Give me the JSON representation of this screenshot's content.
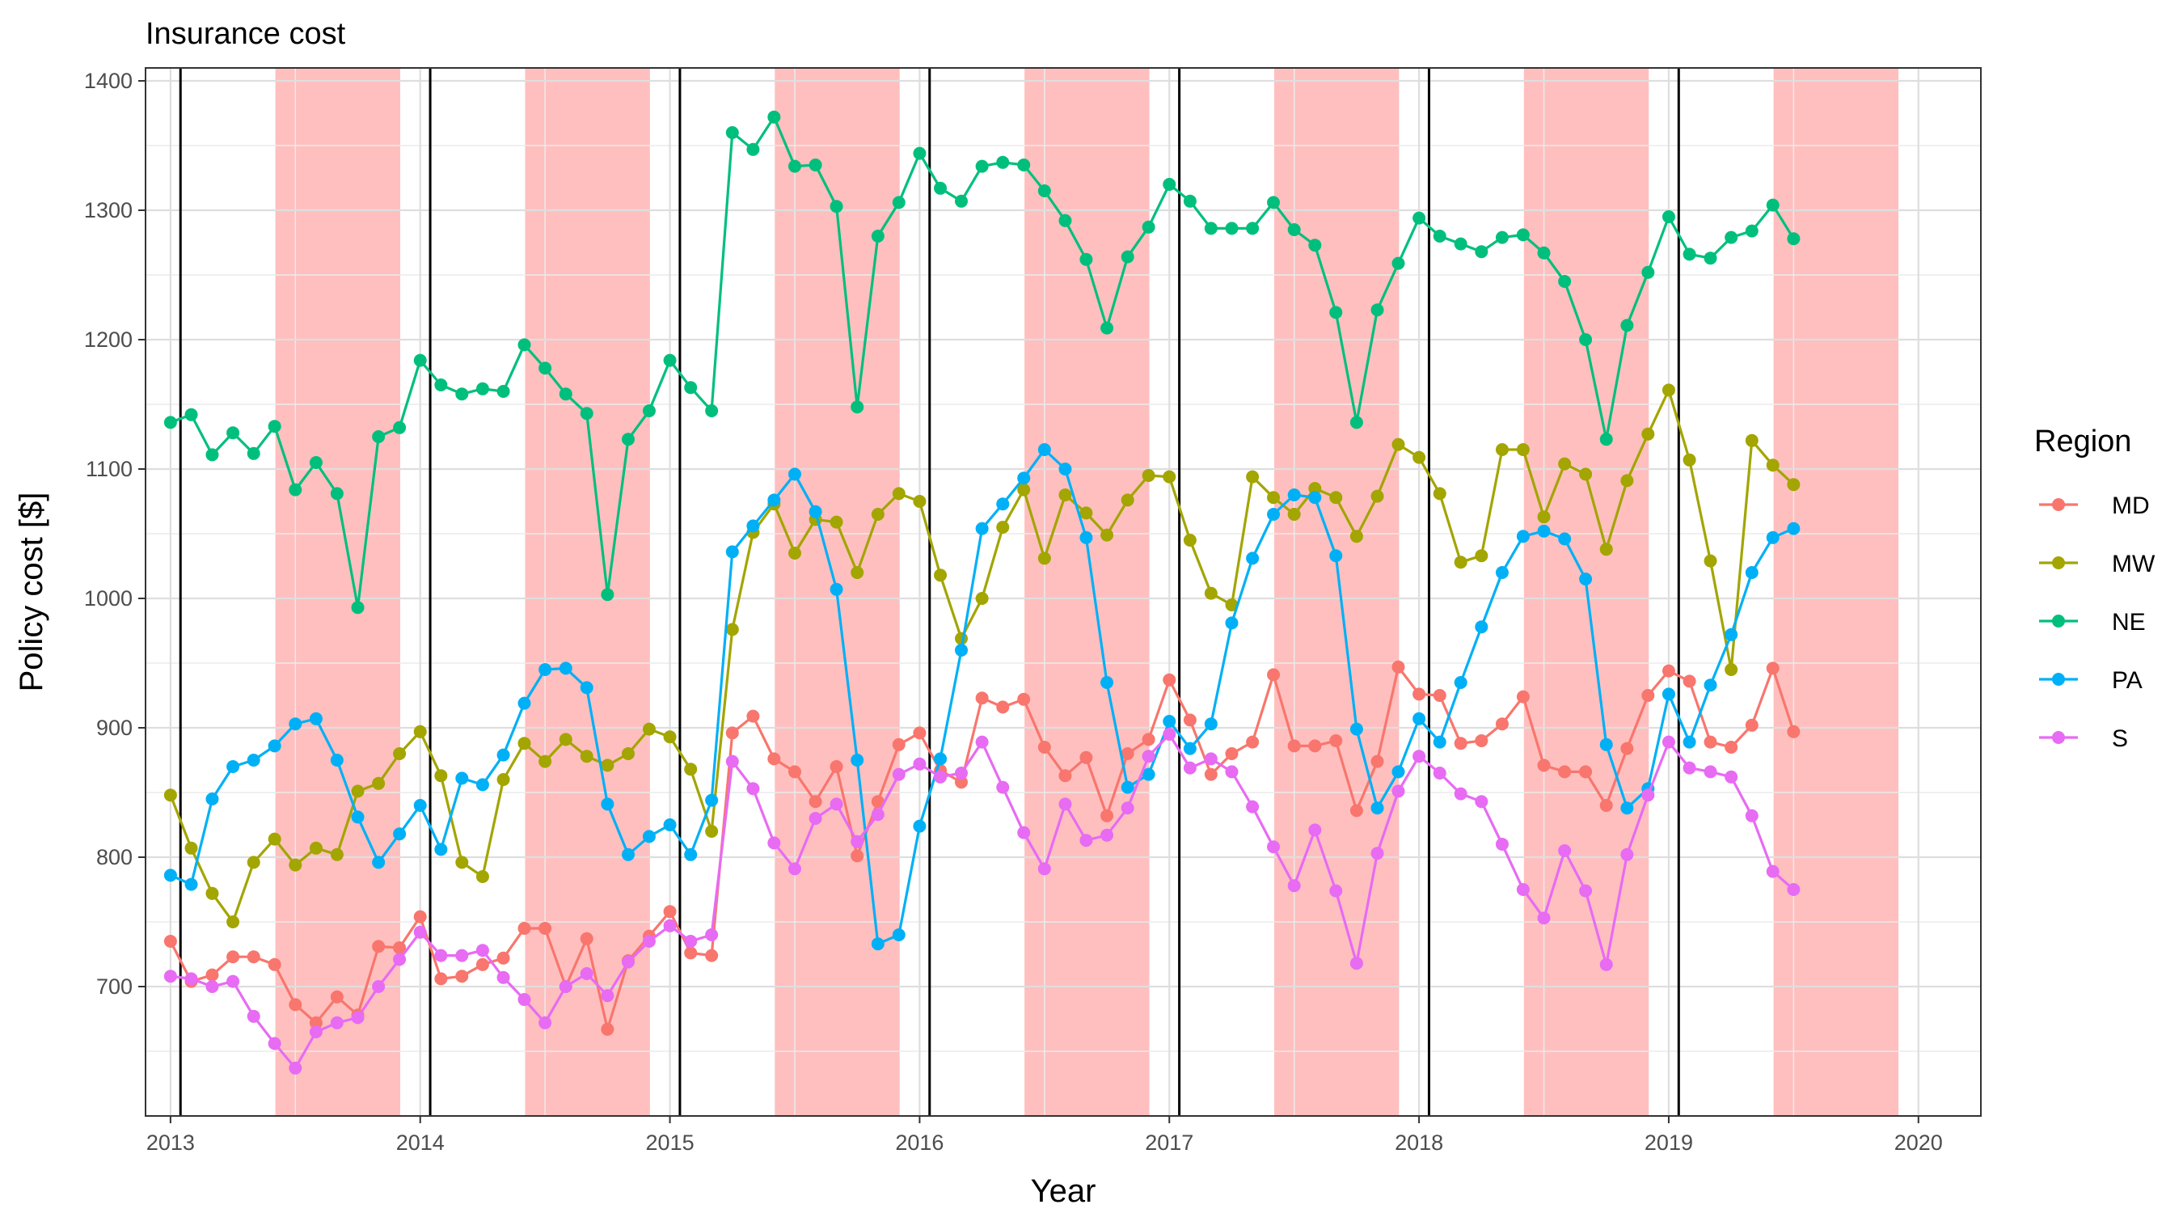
{
  "chart_data": {
    "type": "line",
    "title": "Insurance cost",
    "xlabel": "Year",
    "ylabel": "Policy cost [$]",
    "xlim": [
      2012.9,
      2020.25
    ],
    "ylim": [
      600,
      1410
    ],
    "x_ticks": [
      2013,
      2014,
      2015,
      2016,
      2017,
      2018,
      2019,
      2020
    ],
    "x_tick_labels": [
      "2013",
      "2014",
      "2015",
      "2016",
      "2017",
      "2018",
      "2019",
      "2020"
    ],
    "y_ticks": [
      700,
      800,
      900,
      1000,
      1100,
      1200,
      1300,
      1400
    ],
    "y_tick_labels": [
      "700",
      "800",
      "900",
      "1000",
      "1100",
      "1200",
      "1300",
      "1400"
    ],
    "grid": true,
    "legend": {
      "title": "Region",
      "position": "right"
    },
    "year_lines": [
      2013.04,
      2014.04,
      2015.04,
      2016.04,
      2017.04,
      2018.04,
      2019.04
    ],
    "shaded_ranges": [
      [
        2013.42,
        2013.92
      ],
      [
        2014.42,
        2014.92
      ],
      [
        2015.42,
        2015.92
      ],
      [
        2016.42,
        2016.92
      ],
      [
        2017.42,
        2017.92
      ],
      [
        2018.42,
        2018.92
      ],
      [
        2019.42,
        2019.92
      ]
    ],
    "shade_color": "#ffbfbf",
    "x": [
      2013.0,
      2013.083,
      2013.167,
      2013.25,
      2013.333,
      2013.417,
      2013.5,
      2013.583,
      2013.667,
      2013.75,
      2013.833,
      2013.917,
      2014.0,
      2014.083,
      2014.167,
      2014.25,
      2014.333,
      2014.417,
      2014.5,
      2014.583,
      2014.667,
      2014.75,
      2014.833,
      2014.917,
      2015.0,
      2015.083,
      2015.167,
      2015.25,
      2015.333,
      2015.417,
      2015.5,
      2015.583,
      2015.667,
      2015.75,
      2015.833,
      2015.917,
      2016.0,
      2016.083,
      2016.167,
      2016.25,
      2016.333,
      2016.417,
      2016.5,
      2016.583,
      2016.667,
      2016.75,
      2016.833,
      2016.917,
      2017.0,
      2017.083,
      2017.167,
      2017.25,
      2017.333,
      2017.417,
      2017.5,
      2017.583,
      2017.667,
      2017.75,
      2017.833,
      2017.917,
      2018.0,
      2018.083,
      2018.167,
      2018.25,
      2018.333,
      2018.417,
      2018.5,
      2018.583,
      2018.667,
      2018.75,
      2018.833,
      2018.917,
      2019.0,
      2019.083,
      2019.167,
      2019.25,
      2019.333,
      2019.417,
      2019.5
    ],
    "series": [
      {
        "name": "MD",
        "color": "#f8766d",
        "values": [
          735,
          704,
          709,
          723,
          723,
          717,
          686,
          672,
          692,
          678,
          731,
          730,
          754,
          706,
          708,
          717,
          722,
          745,
          745,
          700,
          737,
          667,
          720,
          739,
          758,
          726,
          724,
          896,
          909,
          876,
          866,
          843,
          870,
          801,
          843,
          887,
          896,
          867,
          858,
          923,
          916,
          922,
          885,
          863,
          877,
          832,
          880,
          891,
          937,
          906,
          864,
          880,
          889,
          941,
          886,
          886,
          890,
          836,
          874,
          947,
          926,
          925,
          888,
          890,
          903,
          924,
          871,
          866,
          866,
          840,
          884,
          925,
          944,
          936,
          889,
          885,
          902,
          946,
          897
        ]
      },
      {
        "name": "MW",
        "color": "#a3a500",
        "values": [
          848,
          807,
          772,
          750,
          796,
          814,
          794,
          807,
          802,
          851,
          857,
          880,
          897,
          863,
          796,
          785,
          860,
          888,
          874,
          891,
          878,
          871,
          880,
          899,
          893,
          868,
          820,
          976,
          1051,
          1073,
          1035,
          1061,
          1059,
          1020,
          1065,
          1081,
          1075,
          1018,
          969,
          1000,
          1055,
          1084,
          1031,
          1080,
          1066,
          1049,
          1076,
          1095,
          1094,
          1045,
          1004,
          995,
          1094,
          1078,
          1065,
          1085,
          1078,
          1048,
          1079,
          1119,
          1109,
          1081,
          1028,
          1033,
          1115,
          1115,
          1063,
          1104,
          1096,
          1038,
          1091,
          1127,
          1161,
          1107,
          1029,
          945,
          1122,
          1103,
          1088
        ]
      },
      {
        "name": "NE",
        "color": "#00bf7d",
        "values": [
          1136,
          1142,
          1111,
          1128,
          1112,
          1133,
          1084,
          1105,
          1081,
          993,
          1125,
          1132,
          1184,
          1165,
          1158,
          1162,
          1160,
          1196,
          1178,
          1158,
          1143,
          1003,
          1123,
          1145,
          1184,
          1163,
          1145,
          1360,
          1347,
          1372,
          1334,
          1335,
          1303,
          1148,
          1280,
          1306,
          1344,
          1317,
          1307,
          1334,
          1337,
          1335,
          1315,
          1292,
          1262,
          1209,
          1264,
          1287,
          1320,
          1307,
          1286,
          1286,
          1286,
          1306,
          1285,
          1273,
          1221,
          1136,
          1223,
          1259,
          1294,
          1280,
          1274,
          1268,
          1279,
          1281,
          1267,
          1245,
          1200,
          1123,
          1211,
          1252,
          1295,
          1266,
          1263,
          1279,
          1284,
          1304,
          1278
        ]
      },
      {
        "name": "PA",
        "color": "#00b0f6",
        "values": [
          786,
          779,
          845,
          870,
          875,
          886,
          903,
          907,
          875,
          831,
          796,
          818,
          840,
          806,
          861,
          856,
          879,
          919,
          945,
          946,
          931,
          841,
          802,
          816,
          825,
          802,
          844,
          1036,
          1056,
          1076,
          1096,
          1067,
          1007,
          875,
          733,
          740,
          824,
          876,
          960,
          1054,
          1073,
          1093,
          1115,
          1100,
          1047,
          935,
          854,
          864,
          905,
          884,
          903,
          981,
          1031,
          1065,
          1080,
          1078,
          1033,
          899,
          838,
          866,
          907,
          889,
          935,
          978,
          1020,
          1048,
          1052,
          1046,
          1015,
          887,
          838,
          853,
          926,
          889,
          933,
          972,
          1020,
          1047,
          1054
        ]
      },
      {
        "name": "S",
        "color": "#e76bf3",
        "values": [
          708,
          706,
          700,
          704,
          677,
          656,
          637,
          665,
          672,
          676,
          700,
          721,
          742,
          724,
          724,
          728,
          707,
          690,
          672,
          700,
          710,
          693,
          719,
          735,
          747,
          735,
          740,
          874,
          853,
          811,
          791,
          830,
          841,
          812,
          833,
          864,
          872,
          862,
          865,
          889,
          854,
          819,
          791,
          841,
          813,
          817,
          838,
          878,
          895,
          869,
          876,
          866,
          839,
          808,
          778,
          821,
          774,
          718,
          803,
          851,
          878,
          865,
          849,
          843,
          810,
          775,
          753,
          805,
          774,
          717,
          802,
          848,
          889,
          869,
          866,
          862,
          832,
          789,
          775
        ]
      }
    ]
  }
}
